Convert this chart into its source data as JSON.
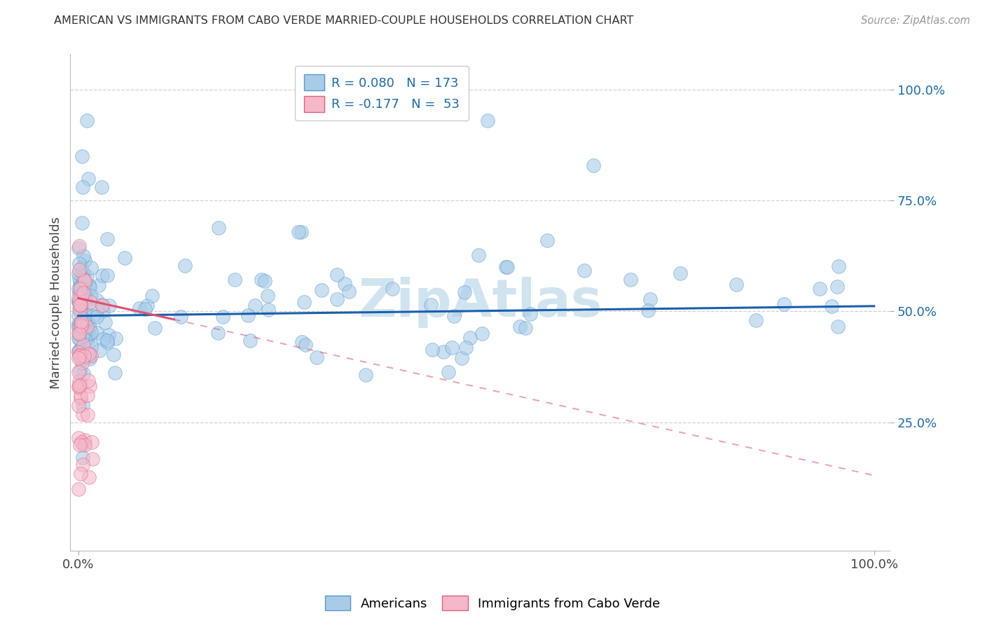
{
  "title": "AMERICAN VS IMMIGRANTS FROM CABO VERDE MARRIED-COUPLE HOUSEHOLDS CORRELATION CHART",
  "source": "Source: ZipAtlas.com",
  "ylabel": "Married-couple Households",
  "ytick_labels": [
    "25.0%",
    "50.0%",
    "75.0%",
    "100.0%"
  ],
  "ytick_values": [
    0.25,
    0.5,
    0.75,
    1.0
  ],
  "blue_R": 0.08,
  "pink_R": -0.177,
  "blue_N": 173,
  "pink_N": 53,
  "blue_color": "#a8cce8",
  "pink_color": "#f4b8c8",
  "blue_edge_color": "#5599cc",
  "pink_edge_color": "#e06080",
  "blue_line_color": "#1a5fa8",
  "pink_line_color": "#e05070",
  "watermark_color": "#d0e4f0",
  "legend_text_color": "#1a6ab0",
  "background": "#ffffff",
  "grid_color": "#cccccc",
  "blue_line_intercept": 0.49,
  "blue_line_slope": 0.022,
  "pink_line_intercept": 0.53,
  "pink_line_slope": -0.4
}
